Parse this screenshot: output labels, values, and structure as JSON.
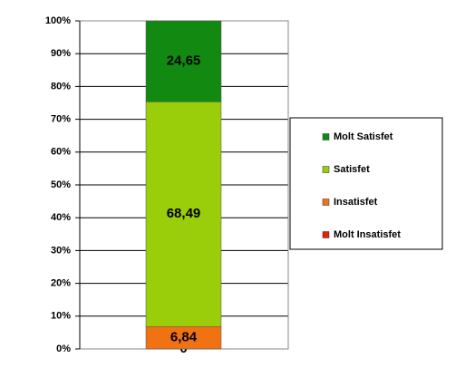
{
  "chart_data": {
    "type": "stacked_bar",
    "categories": [
      null
    ],
    "series": [
      {
        "name": "Molt Insatisfet",
        "color": "#e8200a",
        "values": [
          0
        ],
        "value_labels": [
          "0"
        ]
      },
      {
        "name": "Insatisfet",
        "color": "#f07213",
        "values": [
          6.84
        ],
        "value_labels": [
          "6,84"
        ]
      },
      {
        "name": "Satisfet",
        "color": "#9acd0a",
        "values": [
          68.49
        ],
        "value_labels": [
          "68,49"
        ]
      },
      {
        "name": "Molt Satisfet",
        "color": "#128a12",
        "values": [
          24.65
        ],
        "value_labels": [
          "24,65"
        ]
      }
    ],
    "ylim": [
      0,
      100
    ],
    "yticks": [
      {
        "value": 0,
        "label": "0%"
      },
      {
        "value": 10,
        "label": "10%"
      },
      {
        "value": 20,
        "label": "20%"
      },
      {
        "value": 30,
        "label": "30%"
      },
      {
        "value": 40,
        "label": "40%"
      },
      {
        "value": 50,
        "label": "50%"
      },
      {
        "value": 60,
        "label": "60%"
      },
      {
        "value": 70,
        "label": "70%"
      },
      {
        "value": 80,
        "label": "80%"
      },
      {
        "value": 90,
        "label": "90%"
      },
      {
        "value": 100,
        "label": "100%"
      }
    ],
    "grid": true,
    "legend": "right"
  }
}
